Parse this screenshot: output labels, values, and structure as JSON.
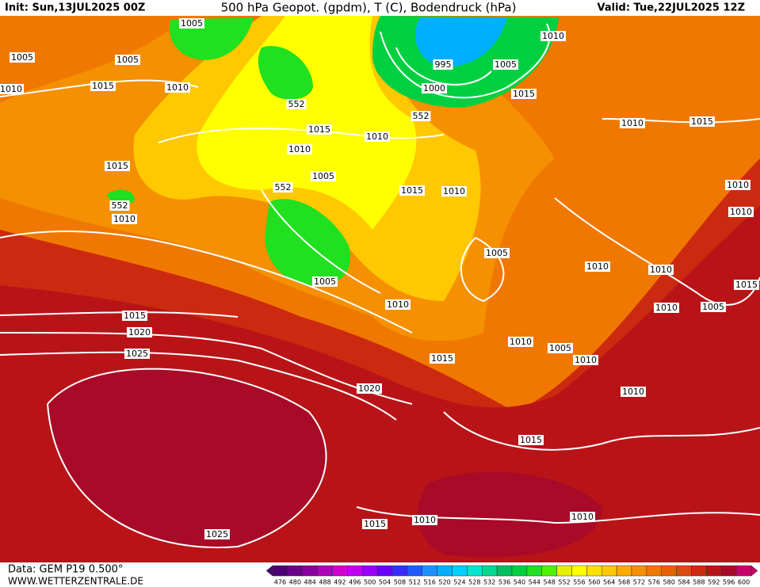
{
  "header": {
    "init": "Init: Sun,13JUL2025 00Z",
    "title": "500 hPa Geopot. (gpdm), T (C), Bodendruck (hPa)",
    "valid": "Valid: Tue,22JUL2025 12Z"
  },
  "isobar_labels": [
    1005,
    1005,
    1005,
    1010,
    1015,
    1010,
    552,
    1015,
    1010,
    1005,
    552,
    1015,
    552,
    1010,
    1010,
    1015,
    1010,
    995,
    1000,
    1005,
    1010,
    1015,
    552,
    1010,
    1015,
    1010,
    1010,
    1005,
    1010,
    1010,
    1015,
    1010,
    1005,
    1005,
    1010,
    1015,
    1020,
    1025,
    1010,
    1005,
    1010,
    1015,
    1020,
    1010,
    1015,
    1015,
    1010,
    1010,
    1025
  ],
  "colorbar": {
    "values": [
      476,
      480,
      484,
      488,
      492,
      496,
      500,
      504,
      508,
      512,
      516,
      520,
      524,
      528,
      532,
      536,
      540,
      544,
      548,
      552,
      556,
      560,
      564,
      568,
      572,
      576,
      580,
      584,
      588,
      592,
      596,
      600
    ],
    "colors": [
      "#4d0073",
      "#6a0088",
      "#8a00a0",
      "#b000b8",
      "#d000d0",
      "#c000f0",
      "#9a00ff",
      "#6a00ff",
      "#3a2cff",
      "#1f5bff",
      "#1e90ff",
      "#00b0ff",
      "#00d0ff",
      "#00e6d0",
      "#00d890",
      "#00c060",
      "#00d040",
      "#20e020",
      "#50f000",
      "#e8f000",
      "#ffff00",
      "#ffe000",
      "#ffc800",
      "#ffaa00",
      "#f59000",
      "#f07800",
      "#e86000",
      "#dd4a10",
      "#cc2a10",
      "#b81418",
      "#a80a28",
      "#c8006a"
    ]
  },
  "footer": {
    "data": "Data: GEM P19 0.500°",
    "site": "WWW.WETTERZENTRALE.DE"
  }
}
